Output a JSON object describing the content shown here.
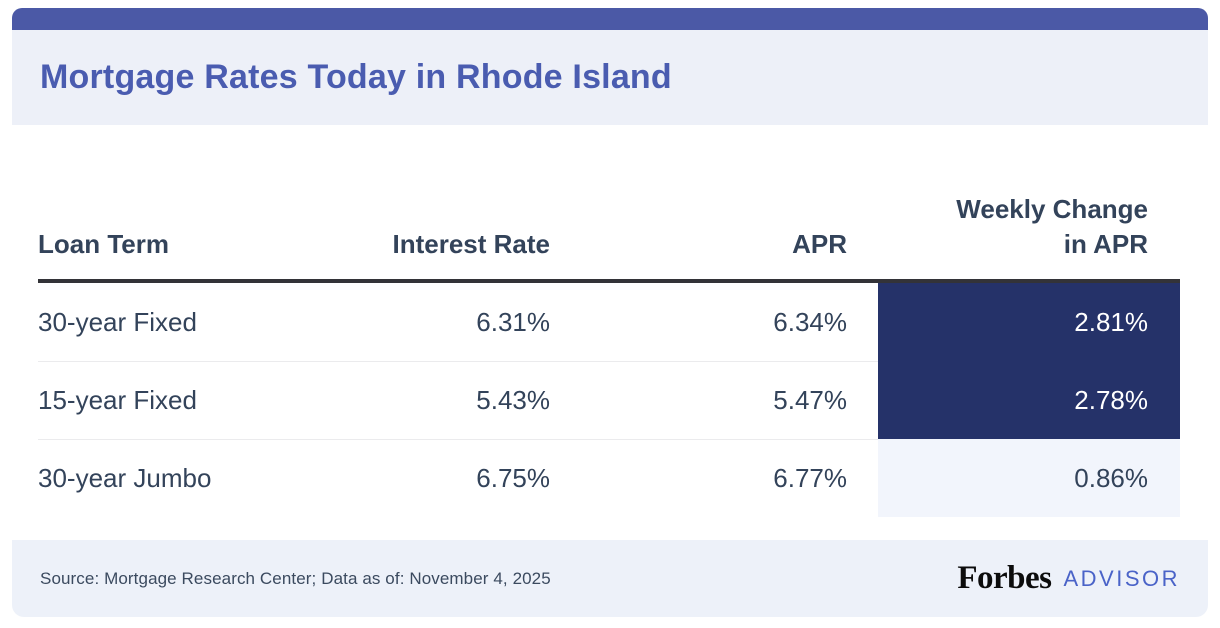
{
  "header": {
    "title": "Mortgage Rates Today in Rhode Island"
  },
  "table": {
    "headers": {
      "loan_term": "Loan Term",
      "interest_rate": "Interest Rate",
      "apr": "APR",
      "weekly_change": "Weekly Change\nin APR"
    },
    "rows": [
      {
        "term": "30-year Fixed",
        "interest_rate": "6.31%",
        "apr": "6.34%",
        "weekly_change": "2.81%",
        "highlight": true
      },
      {
        "term": "15-year Fixed",
        "interest_rate": "5.43%",
        "apr": "5.47%",
        "weekly_change": "2.78%",
        "highlight": true
      },
      {
        "term": "30-year Jumbo",
        "interest_rate": "6.75%",
        "apr": "6.77%",
        "weekly_change": "0.86%",
        "highlight": false
      }
    ]
  },
  "footer": {
    "source": "Source: Mortgage Research Center; Data as of: November 4, 2025",
    "brand": "Forbes",
    "brand_suffix": "ADVISOR"
  },
  "colors": {
    "topbar": "#4b59a6",
    "title_text": "#4a5cb0",
    "band_background": "#edf0f8",
    "footer_background": "#edf1f9",
    "highlight_dark_cell": "#253269",
    "highlight_light_cell": "#f2f5fc",
    "body_text": "#33435a",
    "advisor_blue": "#4a63c8"
  },
  "chart_data": {
    "type": "table",
    "title": "Mortgage Rates Today in Rhode Island",
    "columns": [
      "Loan Term",
      "Interest Rate",
      "APR",
      "Weekly Change in APR"
    ],
    "rows": [
      [
        "30-year Fixed",
        "6.31%",
        "6.34%",
        "2.81%"
      ],
      [
        "15-year Fixed",
        "5.43%",
        "5.47%",
        "2.78%"
      ],
      [
        "30-year Jumbo",
        "6.75%",
        "6.77%",
        "0.86%"
      ]
    ],
    "notes": "Weekly Change in APR cells for 30-year Fixed and 15-year Fixed are highlighted dark navy with white text; 30-year Jumbo cell is light lavender.",
    "source": "Source: Mortgage Research Center; Data as of: November 4, 2025"
  }
}
